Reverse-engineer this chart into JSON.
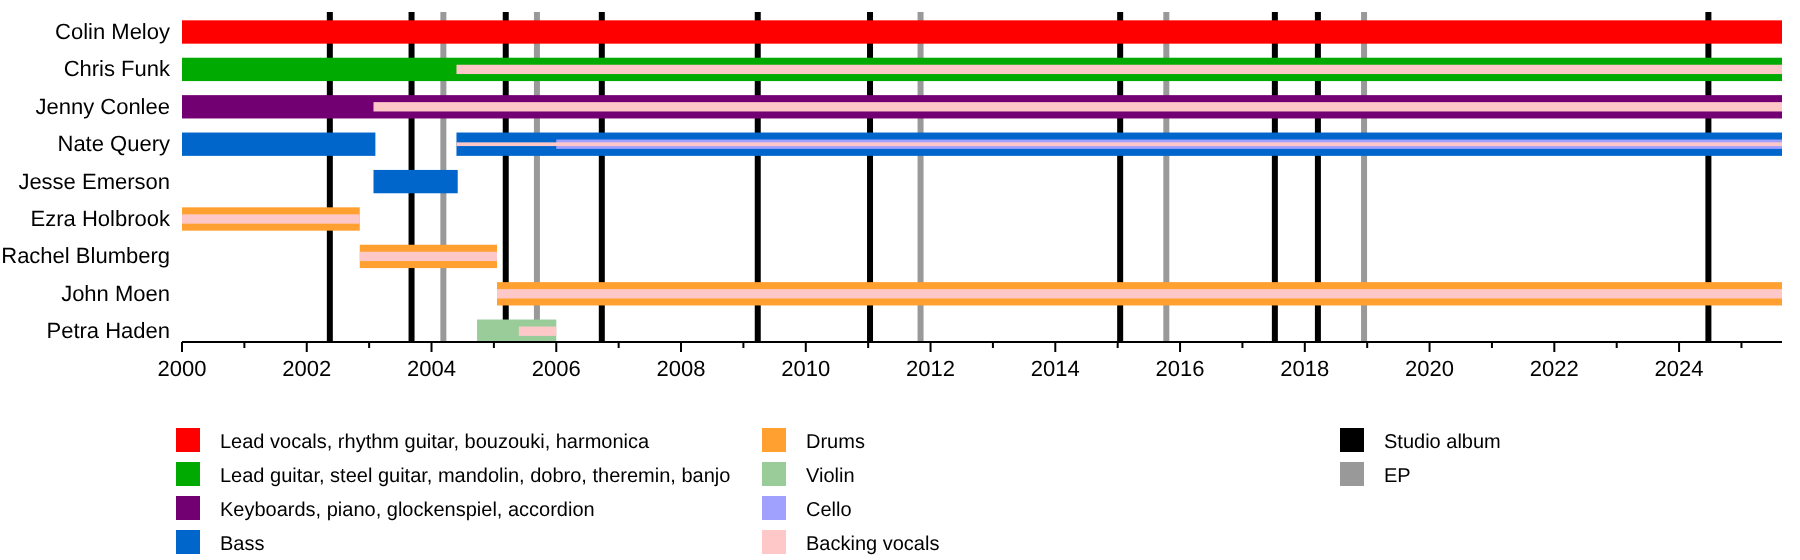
{
  "chart_data": {
    "type": "bar",
    "orientation": "horizontal",
    "legend": "bottom",
    "categories": [
      "Colin Meloy",
      "Chris Funk",
      "Jenny Conlee",
      "Nate Query",
      "Jesse Emerson",
      "Ezra Holbrook",
      "Rachel Blumberg",
      "John Moen",
      "Petra Haden"
    ],
    "xlim": [
      2000,
      2025.65
    ],
    "xticks": [
      2000,
      {
        "value": 2001,
        "label": null
      },
      2002,
      {
        "value": 2003,
        "label": null
      },
      2004,
      {
        "value": 2005,
        "label": null
      },
      2006,
      {
        "value": 2007,
        "label": null
      },
      2008,
      {
        "value": 2009,
        "label": null
      },
      2010,
      {
        "value": 2011,
        "label": null
      },
      2012,
      {
        "value": 2013,
        "label": null
      },
      2014,
      {
        "value": 2015,
        "label": null
      },
      2016,
      {
        "value": 2017,
        "label": null
      },
      2018,
      {
        "value": 2019,
        "label": null
      },
      2020,
      {
        "value": 2021,
        "label": null
      },
      2022,
      {
        "value": 2023,
        "label": null
      },
      2024,
      {
        "value": 2025,
        "label": null
      }
    ],
    "series": [
      {
        "name": "Lead vocals, rhythm guitar, bouzouki, harmonica",
        "color": "#ff0000",
        "values": [
          25.65,
          null,
          null,
          null,
          null,
          null,
          null,
          null,
          null
        ],
        "base": [
          2000,
          null,
          null,
          null,
          null,
          null,
          null,
          null,
          null
        ]
      },
      {
        "name": "Lead guitar, steel guitar, mandolin, dobro, theremin, banjo",
        "color": "#00aa00",
        "values": [
          null,
          25.65,
          null,
          null,
          null,
          null,
          null,
          null,
          null
        ],
        "base": [
          null,
          2000,
          null,
          null,
          null,
          null,
          null,
          null,
          null
        ]
      },
      {
        "name": "Keyboards, piano, glockenspiel, accordion",
        "color": "#730073",
        "values": [
          null,
          null,
          25.65,
          null,
          null,
          null,
          null,
          null,
          null
        ],
        "base": [
          null,
          null,
          2000,
          null,
          null,
          null,
          null,
          null,
          null
        ]
      },
      {
        "name": "Bass",
        "color": "#0066cc",
        "values": [
          null,
          null,
          null,
          3.1,
          1.35,
          null,
          null,
          null,
          null
        ],
        "base": [
          null,
          null,
          null,
          2000,
          2003.07,
          null,
          null,
          null,
          null
        ]
      },
      {
        "color": "#0066cc",
        "values": [
          null,
          null,
          null,
          21.25,
          null,
          null,
          null,
          null,
          null
        ],
        "base": [
          null,
          null,
          null,
          2004.4,
          null,
          null,
          null,
          null,
          null
        ]
      },
      {
        "name": "Drums",
        "color": "#ffa030",
        "values": [
          null,
          null,
          null,
          null,
          null,
          2.85,
          2.2,
          20.6,
          null
        ],
        "base": [
          null,
          null,
          null,
          null,
          null,
          2000,
          2002.85,
          2005.05,
          null
        ]
      },
      {
        "name": "Violin",
        "color": "#99cc99",
        "values": [
          null,
          null,
          null,
          null,
          null,
          null,
          null,
          null,
          1.27
        ],
        "base": [
          null,
          null,
          null,
          null,
          null,
          null,
          null,
          null,
          2004.73
        ]
      },
      {
        "name": "Cello",
        "color": "#a0a0ff",
        "values": [
          null,
          null,
          null,
          19.65,
          null,
          null,
          null,
          null,
          null
        ],
        "base": [
          null,
          null,
          null,
          2006,
          null,
          null,
          null,
          null,
          null
        ]
      },
      {
        "name": "Backing vocals",
        "color": "#ffc8c8",
        "values": [
          null,
          21.25,
          22.58,
          21.25,
          null,
          2.85,
          2.2,
          20.6,
          0.6
        ],
        "base": [
          null,
          2004.4,
          2003.07,
          2004.4,
          null,
          2000,
          2002.85,
          2005.05,
          2005.4
        ]
      }
    ],
    "ref_lines": [
      {
        "axis": "x",
        "value": 2002.37,
        "label": "Studio album",
        "color": "#000000"
      },
      {
        "axis": "x",
        "value": 2003.68,
        "color": "#000000"
      },
      {
        "axis": "x",
        "value": 2005.19,
        "color": "#000000"
      },
      {
        "axis": "x",
        "value": 2006.73,
        "color": "#000000"
      },
      {
        "axis": "x",
        "value": 2009.23,
        "color": "#000000"
      },
      {
        "axis": "x",
        "value": 2011.03,
        "color": "#000000"
      },
      {
        "axis": "x",
        "value": 2015.04,
        "color": "#000000"
      },
      {
        "axis": "x",
        "value": 2017.52,
        "color": "#000000"
      },
      {
        "axis": "x",
        "value": 2018.21,
        "color": "#000000"
      },
      {
        "axis": "x",
        "value": 2024.47,
        "color": "#000000"
      },
      {
        "axis": "x",
        "value": 2004.19,
        "label": "EP",
        "color": "#999999"
      },
      {
        "axis": "x",
        "value": 2005.69,
        "color": "#999999"
      },
      {
        "axis": "x",
        "value": 2011.84,
        "color": "#999999"
      },
      {
        "axis": "x",
        "value": 2015.78,
        "color": "#999999"
      },
      {
        "axis": "x",
        "value": 2018.95,
        "color": "#999999"
      }
    ]
  }
}
